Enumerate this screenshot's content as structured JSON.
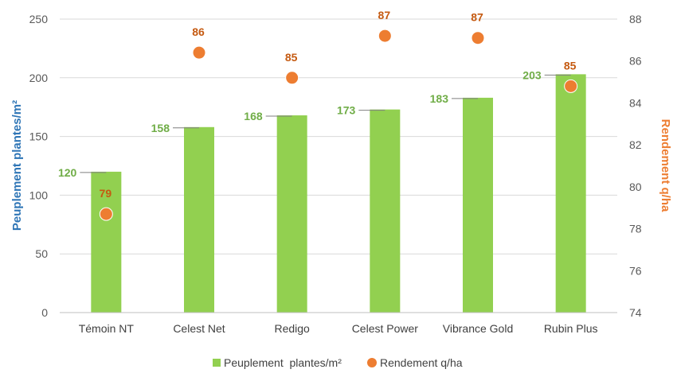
{
  "chart_data": {
    "type": "bar",
    "categories": [
      "Témoin NT",
      "Celest Net",
      "Redigo",
      "Celest Power",
      "Vibrance Gold",
      "Rubin Plus"
    ],
    "series": [
      {
        "name": "Peuplement  plantes/m²",
        "type": "bar",
        "axis": "left",
        "values": [
          120,
          158,
          168,
          173,
          183,
          203
        ],
        "color": "#92d050"
      },
      {
        "name": "Rendement q/ha",
        "type": "scatter",
        "axis": "right",
        "values": [
          78.7,
          86.4,
          85.2,
          87.2,
          87.1,
          84.8
        ],
        "labels": [
          "79",
          "86",
          "85",
          "87",
          "87",
          "85"
        ],
        "color": "#ed7d31"
      }
    ],
    "ylabel": "Peuplement plantes/m²",
    "ylabel_right": "Rendement q/ha",
    "ylim": [
      0,
      250
    ],
    "yticks": [
      0,
      50,
      100,
      150,
      200,
      250
    ],
    "ylim_right": [
      74,
      88
    ],
    "yticks_right": [
      74,
      76,
      78,
      80,
      82,
      84,
      86,
      88
    ],
    "grid": true,
    "legend_position": "bottom",
    "colors": {
      "bar_label": "#70ad47",
      "point_label": "#c55a11",
      "left_axis_title": "#2e75b6",
      "right_axis_title": "#ed7d31",
      "grid": "#d9d9d9",
      "leader": "#7f7f7f"
    }
  }
}
